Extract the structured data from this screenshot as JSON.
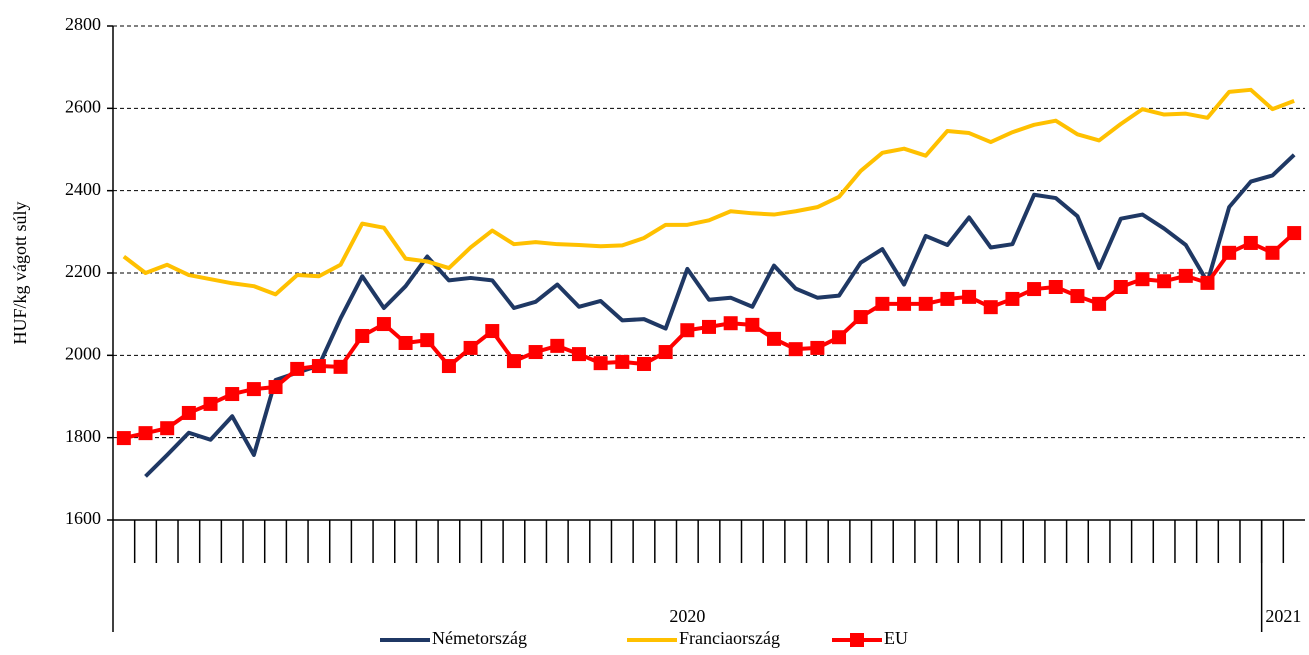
{
  "chart_data": {
    "type": "line",
    "y_label": "HUF/kg vágott súly",
    "categories": [
      null,
      null,
      null,
      null,
      null,
      null,
      null,
      null,
      null,
      null,
      null,
      null,
      null,
      null,
      null,
      null,
      null,
      null,
      null,
      null,
      null,
      null,
      null,
      null,
      null,
      null,
      null,
      null,
      null,
      null,
      null,
      null,
      null,
      null,
      null,
      null,
      null,
      null,
      null,
      null,
      null,
      null,
      null,
      null,
      null,
      null,
      null,
      null,
      null,
      null,
      null,
      null,
      null,
      null,
      null
    ],
    "groups": [
      {
        "label": "2020",
        "count": 53
      },
      {
        "label": "2021",
        "count": 2
      }
    ],
    "ylim": [
      1600,
      2800
    ],
    "yticks": [
      1600,
      1800,
      2000,
      2200,
      2400,
      2600,
      2800
    ],
    "grid": true,
    "series": [
      {
        "name": "Németország",
        "color": "#1f3864",
        "marker": false,
        "values": [
          null,
          1706,
          1758,
          1812,
          1795,
          1852,
          1758,
          1940,
          1958,
          1975,
          2090,
          2192,
          2115,
          2168,
          2240,
          2182,
          2188,
          2182,
          2115,
          2130,
          2172,
          2118,
          2132,
          2085,
          2088,
          2065,
          2210,
          2135,
          2140,
          2118,
          2218,
          2162,
          2140,
          2145,
          2225,
          2258,
          2172,
          2290,
          2268,
          2335,
          2262,
          2270,
          2390,
          2382,
          2338,
          2212,
          2332,
          2342,
          2308,
          2268,
          2178,
          2360,
          2422,
          2437,
          2487
        ]
      },
      {
        "name": "Franciaország",
        "color": "#ffc000",
        "marker": false,
        "values": [
          2240,
          2200,
          2220,
          2195,
          2185,
          2175,
          2168,
          2148,
          2195,
          2192,
          2220,
          2320,
          2310,
          2235,
          2228,
          2212,
          2262,
          2303,
          2270,
          2275,
          2270,
          2268,
          2265,
          2267,
          2285,
          2317,
          2317,
          2328,
          2350,
          2345,
          2342,
          2350,
          2360,
          2385,
          2448,
          2492,
          2502,
          2485,
          2545,
          2540,
          2518,
          2542,
          2560,
          2570,
          2537,
          2522,
          2562,
          2598,
          2585,
          2587,
          2577,
          2640,
          2645,
          2598,
          2618
        ]
      },
      {
        "name": "EU",
        "color": "#ff0000",
        "marker": true,
        "values": [
          1799,
          1811,
          1823,
          1860,
          1882,
          1906,
          1918,
          1923,
          1967,
          1974,
          1972,
          2047,
          2076,
          2030,
          2037,
          1974,
          2018,
          2059,
          1986,
          2008,
          2023,
          2003,
          1981,
          1984,
          1979,
          2008,
          2061,
          2069,
          2078,
          2074,
          2040,
          2015,
          2018,
          2044,
          2093,
          2125,
          2125,
          2125,
          2137,
          2142,
          2117,
          2137,
          2161,
          2166,
          2144,
          2125,
          2166,
          2185,
          2180,
          2193,
          2176,
          2249,
          2273,
          2249,
          2297
        ]
      }
    ]
  }
}
